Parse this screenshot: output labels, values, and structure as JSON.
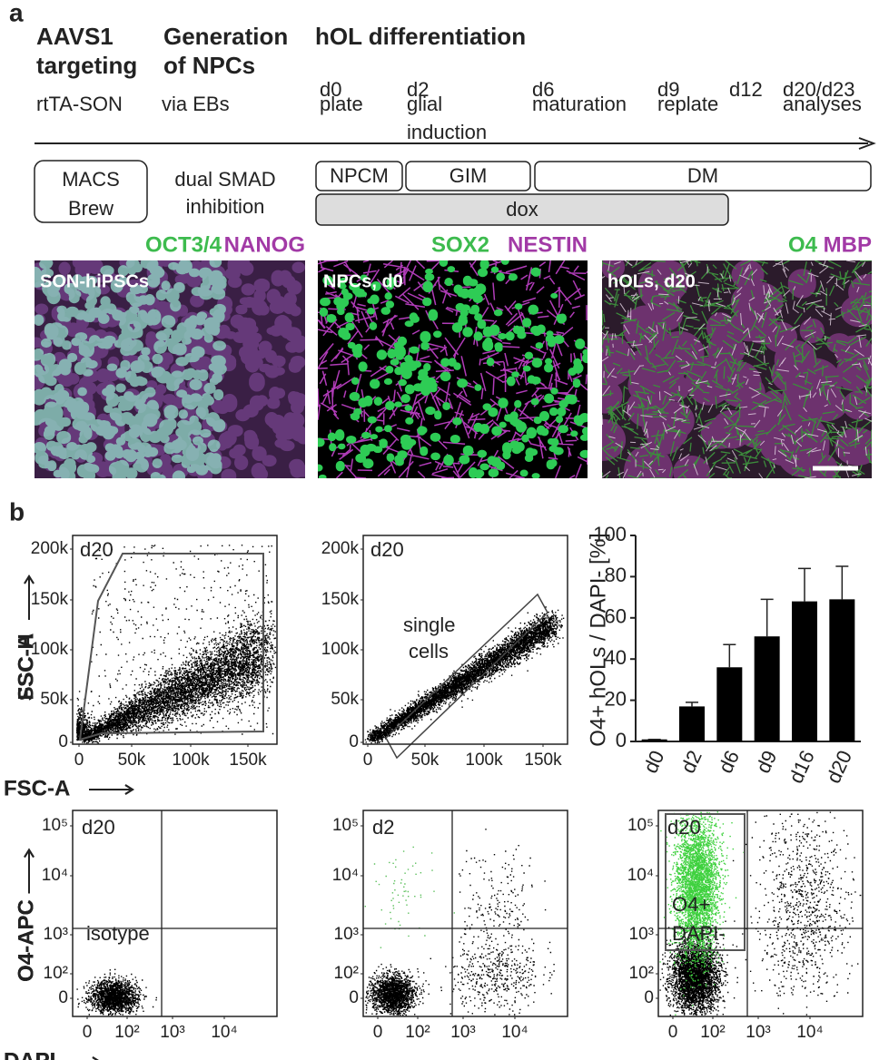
{
  "panel_a": {
    "label": "a",
    "headings": [
      [
        "AAVS1",
        "targeting"
      ],
      [
        "Generation",
        "of NPCs"
      ],
      [
        "hOL differentiation"
      ]
    ],
    "steps": [
      [
        "rtTA-SON"
      ],
      [
        "via EBs"
      ],
      [
        "d0",
        "plate"
      ],
      [
        "d2",
        "glial",
        "induction"
      ],
      [
        "d6",
        "maturation"
      ],
      [
        "d9",
        "replate"
      ],
      [
        "d12"
      ],
      [
        "d20/d23",
        "analyses"
      ]
    ],
    "media": [
      [
        "MACS",
        "Brew"
      ],
      [
        "dual SMAD",
        "inhibition"
      ],
      [
        "NPCM"
      ],
      [
        "GIM"
      ],
      [
        "DM"
      ],
      [
        "dox"
      ]
    ],
    "images": [
      {
        "markers": [
          "OCT3/4",
          "NANOG"
        ],
        "label": "SON-hiPSCs"
      },
      {
        "markers": [
          "SOX2",
          "NESTIN"
        ],
        "label": "NPCs, d0"
      },
      {
        "markers": [
          "O4",
          "MBP"
        ],
        "label": "hOLs, d20"
      }
    ]
  },
  "panel_b": {
    "label": "b",
    "scatter_plots": [
      {
        "tag": "d20",
        "y_label": "SSC-A",
        "x_label": "FSC-A",
        "yticks": [
          "200k",
          "150k",
          "100k",
          "50k",
          "0"
        ],
        "xticks": [
          "0",
          "50k",
          "100k",
          "150k"
        ]
      },
      {
        "tag": "d20",
        "gate": [
          "single",
          "cells"
        ],
        "y_label": "FSC-H",
        "x_label": "FSC-A",
        "yticks": [
          "200k",
          "150k",
          "100k",
          "50k",
          "0"
        ],
        "xticks": [
          "0",
          "50k",
          "100k",
          "150k"
        ]
      }
    ],
    "quadrant_plots": [
      {
        "tag": "d20",
        "gate": [
          "isotype"
        ],
        "y_label": "O4-APC",
        "x_label": "DAPI",
        "yticks": [
          "10⁵",
          "10⁴",
          "10³",
          "10²",
          "0"
        ],
        "xticks": [
          "0",
          "10²",
          "10³",
          "10⁴"
        ]
      },
      {
        "tag": "d2",
        "y_label": "O4-APC",
        "x_label": "DAPI",
        "yticks": [
          "10⁵",
          "10⁴",
          "10³",
          "10²",
          "0"
        ],
        "xticks": [
          "0",
          "10²",
          "10³",
          "10⁴"
        ]
      },
      {
        "tag": "d20",
        "gate": [
          "O4+",
          "DAPI-"
        ],
        "y_label": "O4-APC",
        "x_label": "DAPI",
        "yticks": [
          "10⁵",
          "10⁴",
          "10³",
          "10²",
          "0"
        ],
        "xticks": [
          "0",
          "10²",
          "10³",
          "10⁴"
        ]
      }
    ]
  },
  "chart_data": {
    "type": "bar",
    "y_label": "O4+ hOLs / DAPI- [%]",
    "categories": [
      "d0",
      "d2",
      "d6",
      "d9",
      "d16",
      "d20"
    ],
    "values": [
      1,
      17,
      36,
      51,
      68,
      69
    ],
    "errors": [
      0,
      2,
      11,
      18,
      16,
      16
    ],
    "color": "#000000",
    "ylim": [
      0,
      100
    ],
    "yticks": [
      0,
      20,
      40,
      60,
      80,
      100
    ]
  }
}
